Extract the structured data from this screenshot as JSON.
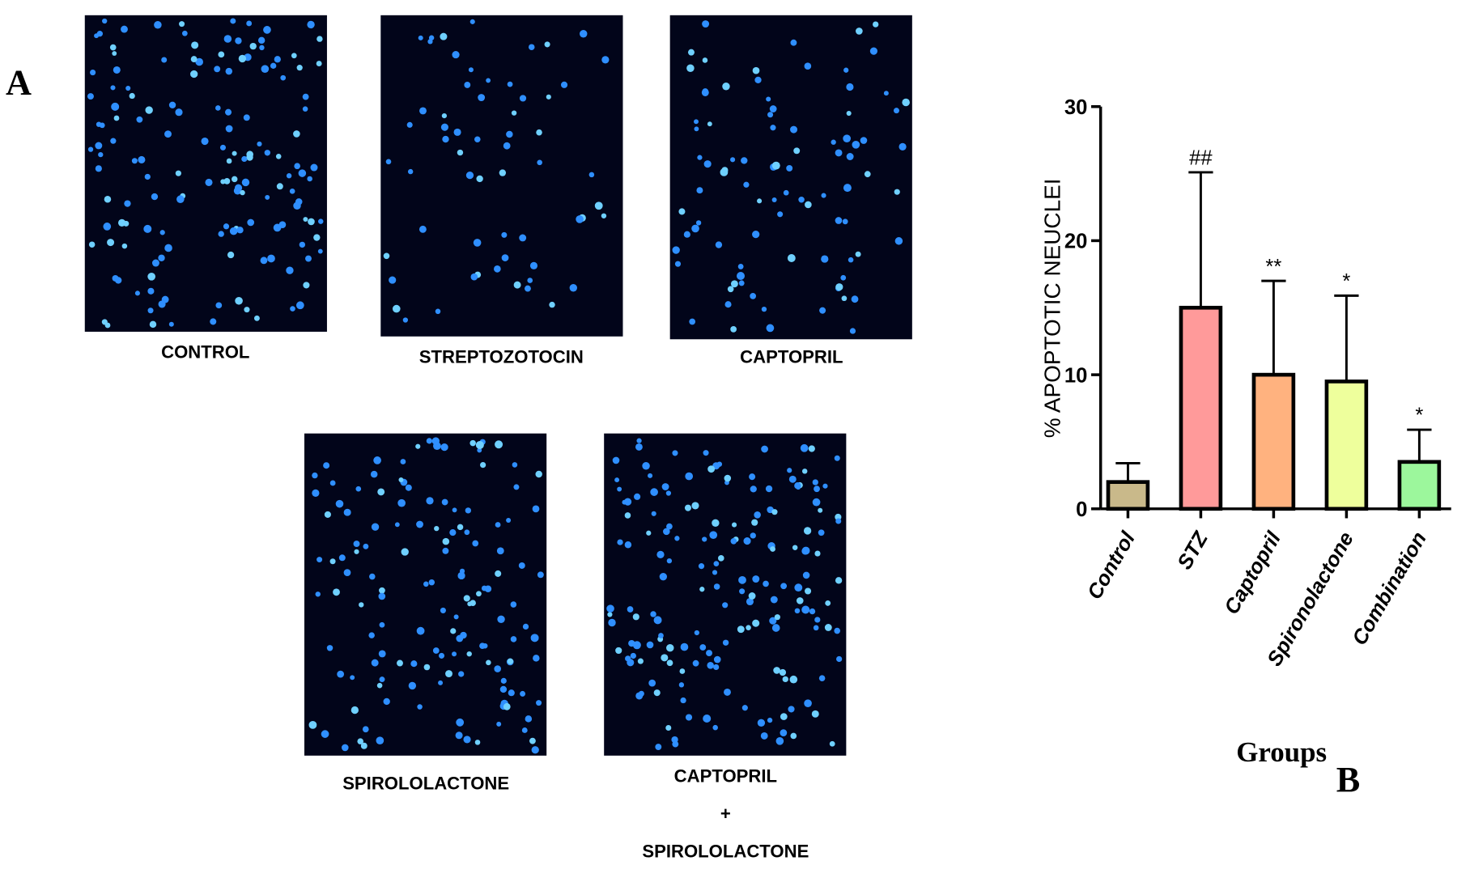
{
  "panel_a": {
    "label": "A",
    "images": [
      {
        "caption": [
          "CONTROL"
        ]
      },
      {
        "caption": [
          "STREPTOZOTOCIN"
        ]
      },
      {
        "caption": [
          "CAPTOPRIL"
        ]
      },
      {
        "caption": [
          "SPIROLOLACTONE"
        ]
      },
      {
        "caption": [
          "CAPTOPRIL",
          "+",
          "SPIROLOLACTONE"
        ]
      }
    ]
  },
  "panel_b_label": "B",
  "chart_data": {
    "type": "bar",
    "y_label": "% APOPTOTIC NEUCLEI",
    "x_label": "Groups",
    "categories": [
      "Control",
      "STZ",
      "Captopril",
      "Spironolactone",
      "Combination"
    ],
    "values": [
      2,
      15,
      10,
      9.5,
      3.5
    ],
    "errors": [
      1.4,
      10.1,
      7,
      6.4,
      2.4
    ],
    "annotations": [
      null,
      "##",
      "**",
      "*",
      "*"
    ],
    "colors": [
      "#c9b98a",
      "#ff9a9a",
      "#ffb27f",
      "#eeff9c",
      "#9cf79c"
    ],
    "ylim": [
      0,
      30
    ],
    "yticks": [
      0,
      10,
      20,
      30
    ]
  }
}
